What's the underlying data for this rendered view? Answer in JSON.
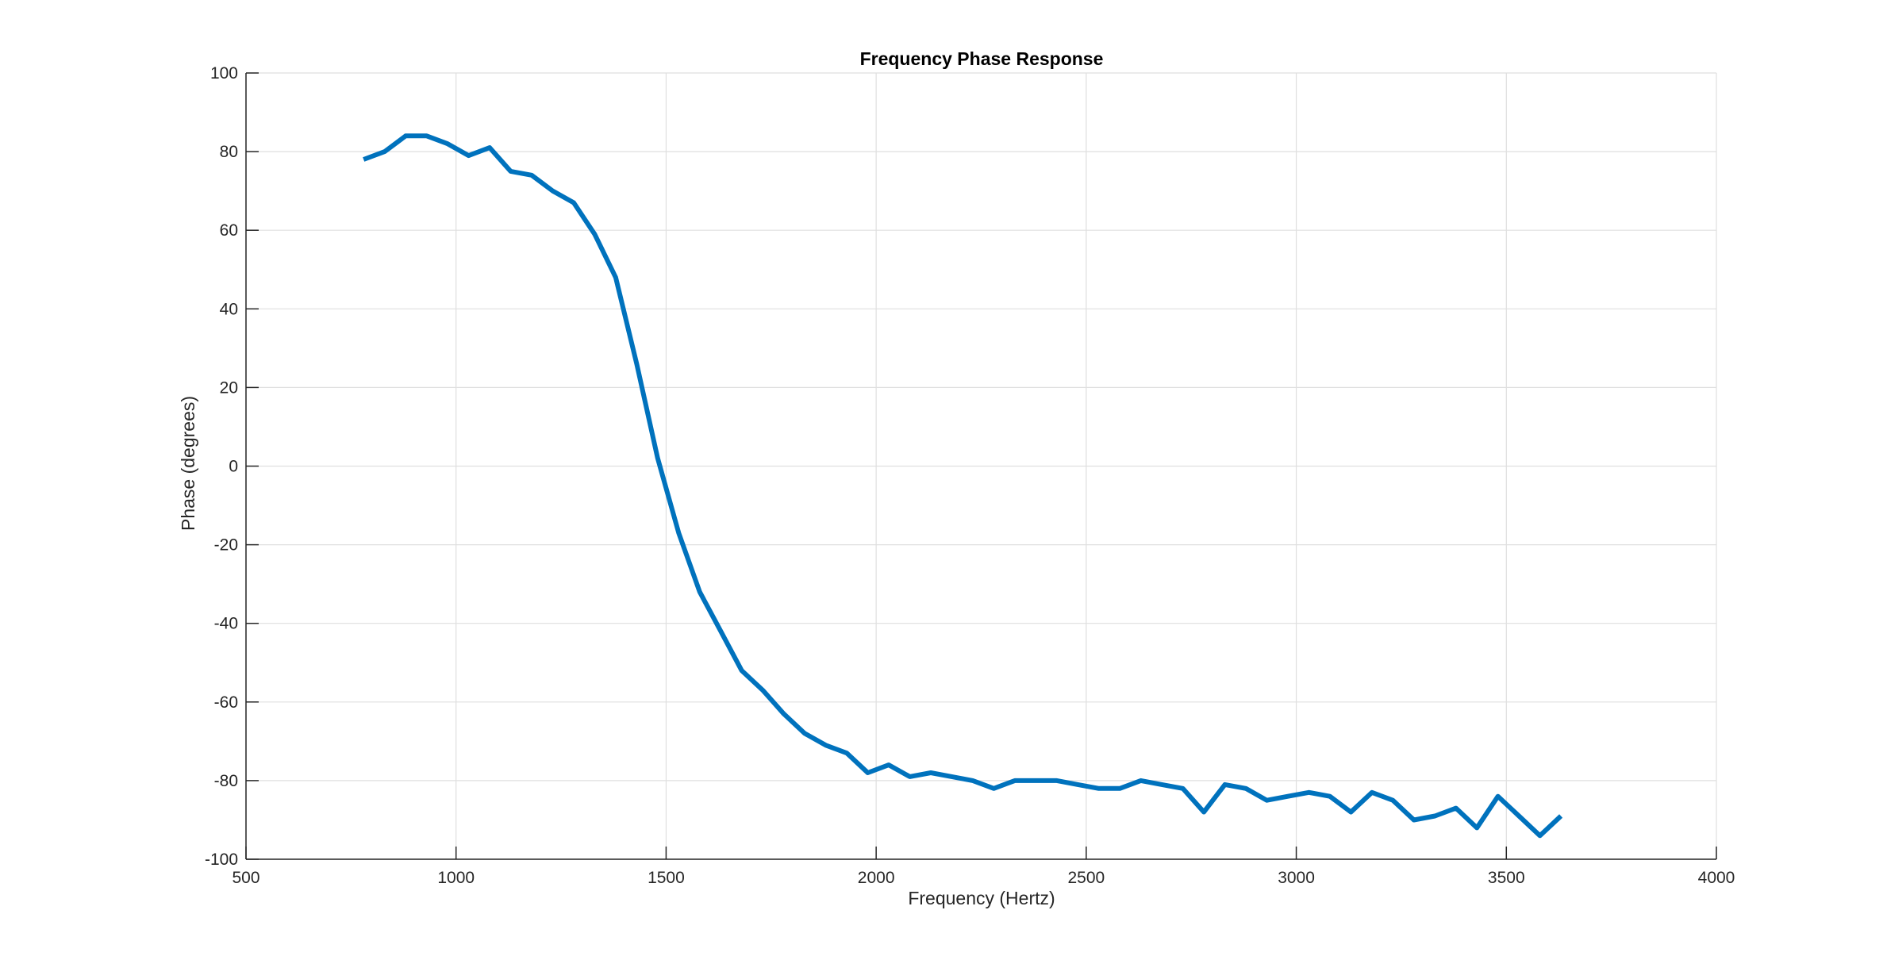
{
  "chart_data": {
    "type": "line",
    "title": "Frequency Phase Response",
    "xlabel": "Frequency (Hertz)",
    "ylabel": "Phase (degrees)",
    "xlim": [
      500,
      4000
    ],
    "ylim": [
      -100,
      100
    ],
    "xticks": [
      500,
      1000,
      1500,
      2000,
      2500,
      3000,
      3500,
      4000
    ],
    "yticks": [
      -100,
      -80,
      -60,
      -40,
      -20,
      0,
      20,
      40,
      60,
      80,
      100
    ],
    "grid": true,
    "line_color": "#0072BD",
    "grid_color": "#dfdfdf",
    "axis_color": "#262626",
    "series": [
      {
        "x": [
          780,
          830,
          880,
          930,
          980,
          1030,
          1080,
          1130,
          1180,
          1230,
          1280,
          1330,
          1380,
          1430,
          1480,
          1530,
          1580,
          1630,
          1680,
          1730,
          1780,
          1830,
          1880,
          1930,
          1980,
          2030,
          2080,
          2130,
          2180,
          2230,
          2280,
          2330,
          2380,
          2430,
          2480,
          2530,
          2580,
          2630,
          2680,
          2730,
          2780,
          2830,
          2880,
          2930,
          2980,
          3030,
          3080,
          3130,
          3180,
          3230,
          3280,
          3330,
          3380,
          3430,
          3480,
          3530,
          3580,
          3630
        ],
        "values": [
          78,
          80,
          84,
          84,
          82,
          79,
          81,
          75,
          74,
          70,
          67,
          59,
          48,
          26,
          2,
          -17,
          -32,
          -42,
          -52,
          -57,
          -63,
          -68,
          -71,
          -73,
          -78,
          -76,
          -79,
          -78,
          -79,
          -80,
          -82,
          -80,
          -80,
          -80,
          -81,
          -82,
          -82,
          -80,
          -81,
          -82,
          -88,
          -81,
          -82,
          -85,
          -84,
          -83,
          -84,
          -88,
          -83,
          -85,
          -90,
          -89,
          -87,
          -92,
          -84,
          -89,
          -94,
          -89
        ]
      }
    ]
  }
}
